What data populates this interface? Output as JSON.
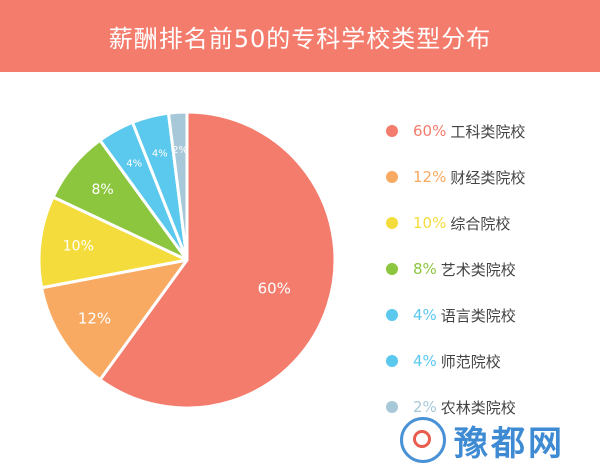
{
  "header": {
    "title": "薪酬排名前50的专科学校类型分布"
  },
  "chart_data": {
    "type": "pie",
    "title": "薪酬排名前50的专科学校类型分布",
    "slices": [
      {
        "label": "工科类院校",
        "value": 60,
        "pct_label": "60%",
        "color": "#f47c6d",
        "show_label": true
      },
      {
        "label": "财经类院校",
        "value": 12,
        "pct_label": "12%",
        "color": "#f9aa62",
        "show_label": true
      },
      {
        "label": "综合院校",
        "value": 10,
        "pct_label": "10%",
        "color": "#f5dc3d",
        "show_label": true
      },
      {
        "label": "艺术类院校",
        "value": 8,
        "pct_label": "8%",
        "color": "#8cc63f",
        "show_label": true
      },
      {
        "label": "语言类院校",
        "value": 4,
        "pct_label": "4%",
        "color": "#5bc8ee",
        "show_label": true
      },
      {
        "label": "师范院校",
        "value": 4,
        "pct_label": "4%",
        "color": "#5bc8ee",
        "show_label": true
      },
      {
        "label": "农林类院校",
        "value": 2,
        "pct_label": "2%",
        "color": "#a7c8d8",
        "show_label": true
      }
    ],
    "legend_position": "right"
  },
  "watermark": {
    "text": "豫都网"
  }
}
